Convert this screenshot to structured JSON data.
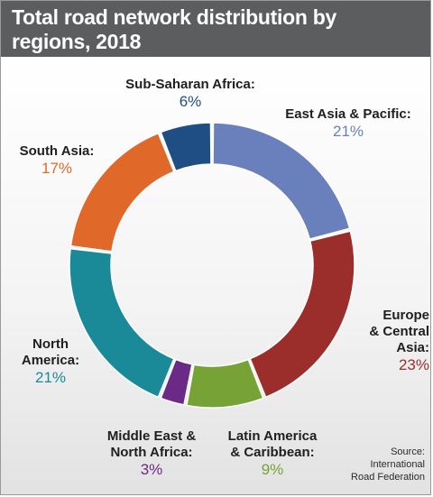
{
  "title": "Total road network distribution by regions, 2018",
  "source": {
    "line1": "Source:",
    "line2": "International",
    "line3": "Road Federation"
  },
  "chart_data": {
    "type": "pie",
    "title": "Total road network distribution by regions, 2018",
    "unit": "%",
    "slices": [
      {
        "name": "East Asia & Pacific:",
        "value": 21,
        "label": "21%",
        "color": "#6a80bd"
      },
      {
        "name": "Europe & Central Asia:",
        "value": 23,
        "label": "23%",
        "color": "#9b2e2a"
      },
      {
        "name": "Latin America & Caribbean:",
        "value": 9,
        "label": "9%",
        "color": "#77a235"
      },
      {
        "name": "Middle East & North Africa:",
        "value": 3,
        "label": "3%",
        "color": "#6a2a85"
      },
      {
        "name": "North America:",
        "value": 21,
        "label": "21%",
        "color": "#1a8a98"
      },
      {
        "name": "South Asia:",
        "value": 17,
        "label": "17%",
        "color": "#e0692a"
      },
      {
        "name": "Sub-Saharan Africa:",
        "value": 6,
        "label": "6%",
        "color": "#1f4e85"
      }
    ],
    "label_lines": [
      [
        "East Asia & Pacific:"
      ],
      [
        "Europe",
        "& Central",
        "Asia:"
      ],
      [
        "Latin America",
        "& Caribbean:"
      ],
      [
        "Middle East &",
        "North Africa:"
      ],
      [
        "North",
        "America:"
      ],
      [
        "South Asia:"
      ],
      [
        "Sub-Saharan Africa:"
      ]
    ]
  }
}
